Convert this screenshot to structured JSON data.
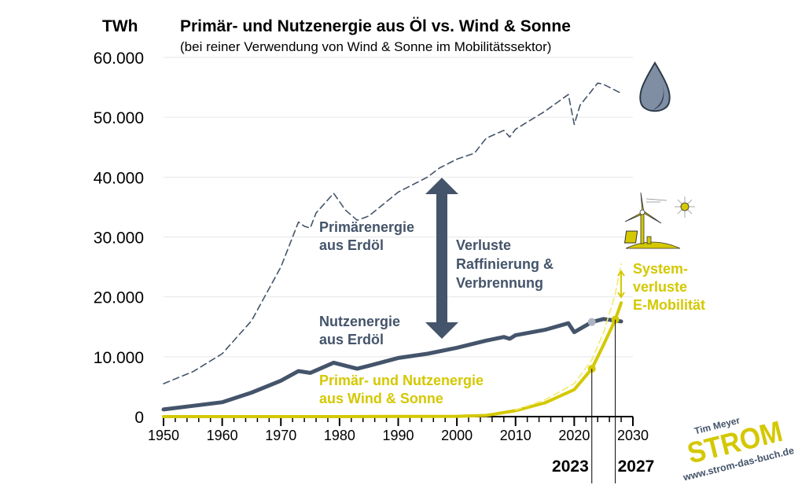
{
  "chart_data": {
    "type": "line",
    "title": "Primär- und Nutzenergie aus Öl vs. Wind & Sonne",
    "subtitle": "(bei reiner Verwendung von Wind & Sonne im Mobilitätssektor)",
    "ylabel": "TWh",
    "xlim": [
      1950,
      2030
    ],
    "ylim": [
      0,
      60000
    ],
    "xticks": [
      "1950",
      "1960",
      "1970",
      "1980",
      "1990",
      "2000",
      "2010",
      "2020",
      "2030"
    ],
    "yticks": [
      "0",
      "10.000",
      "20.000",
      "30.000",
      "40.000",
      "50.000",
      "60.000"
    ],
    "grid": true,
    "series": [
      {
        "name": "Primärenergie aus Erdöl",
        "style": "dashed",
        "color": "#44546a",
        "x": [
          1950,
          1955,
          1960,
          1965,
          1970,
          1973,
          1974,
          1975,
          1976,
          1979,
          1981,
          1983,
          1985,
          1990,
          1995,
          1997,
          2000,
          2003,
          2005,
          2008,
          2009,
          2010,
          2015,
          2019,
          2020,
          2021,
          2024,
          2025,
          2028
        ],
        "y": [
          5500,
          7500,
          10500,
          16000,
          25000,
          32500,
          31800,
          31500,
          34000,
          37300,
          34500,
          32800,
          33500,
          37500,
          40000,
          41500,
          43000,
          44000,
          46500,
          47800,
          46700,
          48000,
          51000,
          53800,
          48800,
          52000,
          55700,
          55500,
          54000
        ]
      },
      {
        "name": "Nutzenergie aus Erdöl",
        "style": "solid",
        "color": "#44546a",
        "x": [
          1950,
          1955,
          1960,
          1965,
          1970,
          1973,
          1975,
          1979,
          1983,
          1985,
          1990,
          1995,
          2000,
          2005,
          2008,
          2009,
          2010,
          2015,
          2019,
          2020,
          2023,
          2025,
          2028
        ],
        "y": [
          1200,
          1800,
          2400,
          4000,
          6000,
          7600,
          7300,
          9000,
          8000,
          8500,
          9800,
          10500,
          11500,
          12700,
          13300,
          13000,
          13600,
          14500,
          15600,
          14100,
          15800,
          16300,
          15900
        ]
      },
      {
        "name": "Primär- und Nutzenergie aus Wind & Sonne",
        "style": "solid",
        "color": "#d4c800",
        "x": [
          1950,
          1980,
          2000,
          2005,
          2010,
          2015,
          2020,
          2023,
          2025,
          2027,
          2028
        ],
        "y": [
          0,
          0,
          50,
          200,
          1000,
          2300,
          4500,
          8000,
          12000,
          16200,
          19000
        ]
      },
      {
        "style": "dashed",
        "color": "#f2ea70",
        "x": [
          2010,
          2015,
          2020,
          2023,
          2025,
          2027,
          2028
        ],
        "y": [
          1100,
          2800,
          5500,
          9500,
          14000,
          20500,
          25500
        ]
      }
    ],
    "annotations": {
      "primary_label": [
        "Primärenergie",
        "aus Erdöl"
      ],
      "useful_label": [
        "Nutzenergie",
        "aus Erdöl"
      ],
      "loss_label": [
        "Verluste",
        "Raffinierung &",
        "Verbrennung"
      ],
      "wind_label": [
        "Primär- und Nutzenergie",
        "aus Wind & Sonne"
      ],
      "system_label": [
        "System-",
        "verluste",
        "E-Mobilität"
      ],
      "marker_years": [
        "2023",
        "2027"
      ]
    }
  },
  "logo": {
    "author": "Tim Meyer",
    "title": "STROM",
    "url": "www.strom-das-buch.de"
  },
  "icons": [
    "oil-drop-icon",
    "wind-turbine-icon",
    "sun-icon",
    "solar-panel-icon"
  ],
  "colors": {
    "oil": "#44546a",
    "wind": "#d4c800",
    "wind_light": "#f2ea70",
    "primary_point": "#aab4c4"
  }
}
